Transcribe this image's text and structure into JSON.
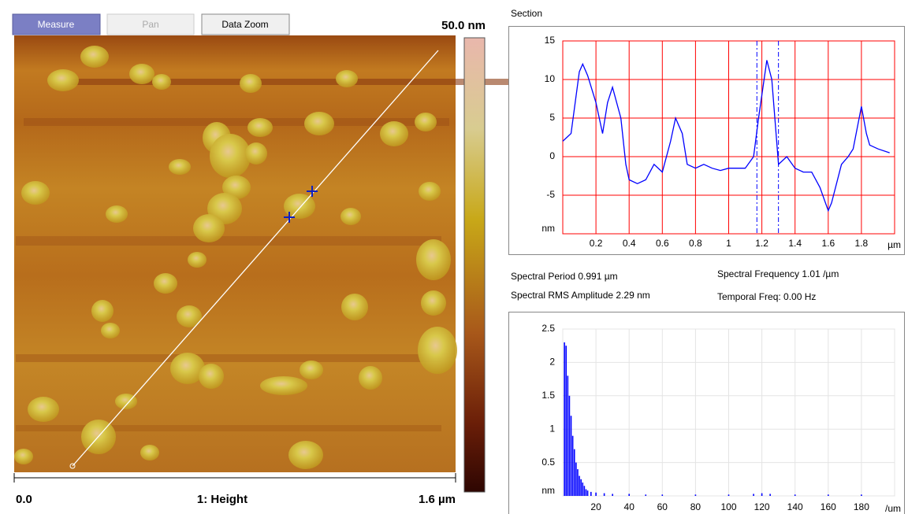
{
  "toolbar": {
    "buttons": [
      "Measure",
      "Pan",
      "Data Zoom"
    ]
  },
  "image": {
    "scale_max": "50.0 nm",
    "x_start": "0.0",
    "channel": "1: Height",
    "x_end": "1.6 µm"
  },
  "section_title": "Section",
  "stats": {
    "spectral_period": "Spectral Period 0.991 µm",
    "spectral_frequency": "Spectral Frequency 1.01 /µm",
    "rms_amplitude": "Spectral RMS Amplitude 2.29 nm",
    "temporal_freq": "Temporal Freq: 0.00 Hz"
  },
  "chart_data": [
    {
      "type": "line",
      "x_label": "µm",
      "y_label": "nm",
      "x": [
        0,
        0.05,
        0.1,
        0.12,
        0.15,
        0.2,
        0.24,
        0.27,
        0.3,
        0.35,
        0.38,
        0.4,
        0.45,
        0.5,
        0.55,
        0.6,
        0.65,
        0.68,
        0.72,
        0.75,
        0.8,
        0.85,
        0.9,
        0.95,
        1.0,
        1.05,
        1.1,
        1.15,
        1.18,
        1.2,
        1.23,
        1.26,
        1.3,
        1.35,
        1.4,
        1.45,
        1.5,
        1.55,
        1.6,
        1.62,
        1.68,
        1.72,
        1.75,
        1.8,
        1.83,
        1.85,
        1.9,
        1.97
      ],
      "series": [
        {
          "color": "#0000ff",
          "values": [
            2,
            3,
            11,
            12,
            10.5,
            7,
            3,
            7,
            9,
            5,
            -1,
            -3,
            -3.5,
            -3,
            -1,
            -2,
            2,
            5,
            3,
            -1,
            -1.5,
            -1,
            -1.5,
            -1.8,
            -1.5,
            -1.5,
            -1.5,
            0,
            5,
            8,
            12.5,
            10,
            -1,
            0,
            -1.5,
            -2,
            -2,
            -4,
            -7,
            -6,
            -1,
            0,
            1,
            6.5,
            3,
            1.5,
            1,
            0.5
          ]
        }
      ],
      "xlim": [
        0,
        2
      ],
      "ylim": [
        -10,
        15
      ],
      "xticks": [
        0.2,
        0.4,
        0.6,
        0.8,
        1,
        1.2,
        1.4,
        1.6,
        1.8
      ],
      "yticks": [
        -5,
        0,
        5,
        10,
        15
      ],
      "grid": true,
      "grid_color": "#ff0000",
      "markers": [
        1.17,
        1.3
      ]
    },
    {
      "type": "bar",
      "x_label": "/um",
      "y_label": "nm",
      "x": [
        1,
        2,
        3,
        4,
        5,
        6,
        7,
        8,
        9,
        10,
        11,
        12,
        13,
        14,
        15,
        17,
        20,
        25,
        30,
        40,
        50,
        60,
        80,
        100,
        115,
        120,
        125,
        140,
        160,
        180
      ],
      "values": [
        2.3,
        2.25,
        1.8,
        1.5,
        1.2,
        0.9,
        0.7,
        0.5,
        0.4,
        0.3,
        0.25,
        0.2,
        0.15,
        0.1,
        0.08,
        0.06,
        0.05,
        0.04,
        0.03,
        0.03,
        0.02,
        0.02,
        0.02,
        0.02,
        0.03,
        0.04,
        0.03,
        0.02,
        0.02,
        0.02
      ],
      "color": "#0000ff",
      "xlim": [
        0,
        200
      ],
      "ylim": [
        0,
        2.5
      ],
      "xticks": [
        20,
        40,
        60,
        80,
        100,
        120,
        140,
        160,
        180
      ],
      "yticks": [
        0.5,
        1,
        1.5,
        2,
        2.5
      ],
      "grid": true,
      "grid_color": "#e4e4e4"
    }
  ]
}
